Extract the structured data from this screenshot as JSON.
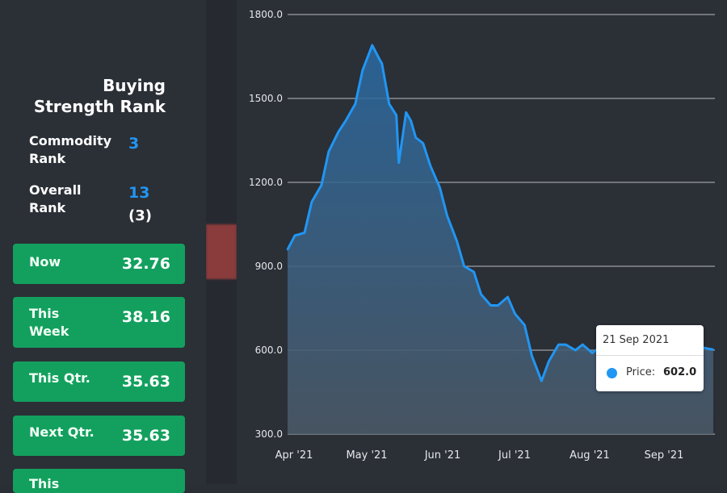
{
  "panel": {
    "title_line1": "Buying",
    "title_line2": "Strength Rank",
    "commodity_label": "Commodity Rank",
    "commodity_value": "3",
    "overall_label": "Overall Rank",
    "overall_value": "13",
    "overall_sub": "(3)",
    "cards": [
      {
        "label": "Now",
        "value": "32.76"
      },
      {
        "label": "This Week",
        "value": "38.16"
      },
      {
        "label": "This Qtr.",
        "value": "35.63"
      },
      {
        "label": "Next Qtr.",
        "value": "35.63"
      },
      {
        "label": "This",
        "value": ""
      }
    ]
  },
  "tooltip": {
    "date": "21 Sep 2021",
    "label": "Price:",
    "value": "602.0"
  },
  "colors": {
    "line": "#2196f3",
    "card": "#13a05e",
    "background": "#2b2f36"
  },
  "chart_data": {
    "type": "area",
    "x": [
      "2021-03-29",
      "2021-04-01",
      "2021-04-05",
      "2021-04-08",
      "2021-04-12",
      "2021-04-15",
      "2021-04-19",
      "2021-04-22",
      "2021-04-26",
      "2021-04-29",
      "2021-05-03",
      "2021-05-06",
      "2021-05-07",
      "2021-05-10",
      "2021-05-13",
      "2021-05-14",
      "2021-05-17",
      "2021-05-19",
      "2021-05-21",
      "2021-05-24",
      "2021-05-27",
      "2021-05-31",
      "2021-06-03",
      "2021-06-07",
      "2021-06-10",
      "2021-06-14",
      "2021-06-17",
      "2021-06-21",
      "2021-06-24",
      "2021-06-28",
      "2021-07-01",
      "2021-07-05",
      "2021-07-08",
      "2021-07-12",
      "2021-07-15",
      "2021-07-19",
      "2021-07-22",
      "2021-07-26",
      "2021-07-29",
      "2021-08-02",
      "2021-08-05",
      "2021-08-09",
      "2021-08-12",
      "2021-08-16",
      "2021-08-19",
      "2021-08-23",
      "2021-08-26",
      "2021-08-30",
      "2021-09-02",
      "2021-09-06",
      "2021-09-09",
      "2021-09-13",
      "2021-09-16",
      "2021-09-21"
    ],
    "values": [
      960,
      1010,
      1020,
      1130,
      1190,
      1310,
      1380,
      1420,
      1480,
      1600,
      1690,
      1640,
      1625,
      1480,
      1440,
      1270,
      1450,
      1420,
      1360,
      1340,
      1260,
      1180,
      1080,
      990,
      900,
      880,
      800,
      760,
      760,
      790,
      730,
      690,
      580,
      490,
      560,
      620,
      620,
      600,
      620,
      590,
      610,
      600,
      600,
      580,
      590,
      610,
      570,
      590,
      560,
      590,
      600,
      570,
      610,
      602
    ],
    "x_ticks": [
      "Apr '21",
      "May '21",
      "Jun '21",
      "Jul '21",
      "Aug '21",
      "Sep '21"
    ],
    "y_ticks": [
      "1800.0",
      "1500.0",
      "1200.0",
      "900.0",
      "600.0",
      "300.0"
    ],
    "ylim": [
      300,
      1800
    ],
    "grid": true
  }
}
